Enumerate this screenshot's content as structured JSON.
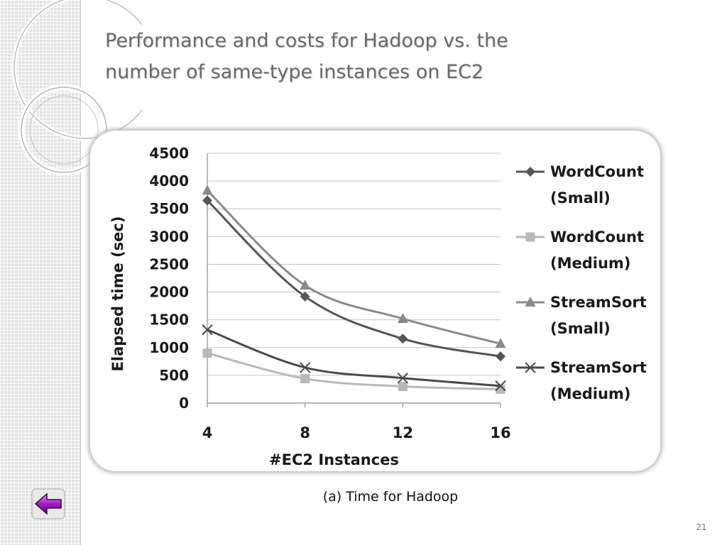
{
  "slide": {
    "title_lines": [
      "Performance and costs for Hadoop vs. the",
      "number of same-type instances on EC2"
    ],
    "caption": "(a) Time for Hadoop",
    "page_number": "21",
    "back_button_icon": "back-arrow-icon"
  },
  "chart_data": {
    "type": "line",
    "title": "",
    "xlabel": "#EC2 Instances",
    "ylabel": "Elapsed time (sec)",
    "categories": [
      "4",
      "8",
      "12",
      "16"
    ],
    "ylim": [
      0,
      4500
    ],
    "yticks": [
      0,
      500,
      1000,
      1500,
      2000,
      2500,
      3000,
      3500,
      4000,
      4500
    ],
    "grid": "horizontal",
    "legend_position": "right",
    "series": [
      {
        "name": "WordCount (Small)",
        "legend_lines": [
          "WordCount",
          "(Small)"
        ],
        "marker": "diamond",
        "color": "#555555",
        "values": [
          3650,
          1920,
          1160,
          840
        ]
      },
      {
        "name": "WordCount (Medium)",
        "legend_lines": [
          "WordCount",
          "(Medium)"
        ],
        "marker": "square",
        "color": "#b8b8b8",
        "values": [
          900,
          440,
          300,
          250
        ]
      },
      {
        "name": "StreamSort (Small)",
        "legend_lines": [
          "StreamSort",
          "(Small)"
        ],
        "marker": "triangle",
        "color": "#8a8a8a",
        "values": [
          3830,
          2120,
          1520,
          1070
        ]
      },
      {
        "name": "StreamSort (Medium)",
        "legend_lines": [
          "StreamSort",
          "(Medium)"
        ],
        "marker": "x",
        "color": "#4a4a4a",
        "values": [
          1320,
          640,
          450,
          310
        ]
      }
    ]
  }
}
